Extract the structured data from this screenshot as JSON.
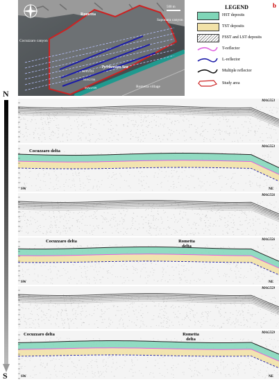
{
  "map": {
    "places": [
      "Rometta",
      "Saponara canyon",
      "Cocuzzaro canyon",
      "Tyrrhenian Sea",
      "Rometta village"
    ],
    "lines": [
      "MAG553",
      "MAG556",
      "MAG559"
    ],
    "scale": "500 m"
  },
  "legend": {
    "title": "LEGEND",
    "panel_letter": "b",
    "items": [
      {
        "label": "HST deposits",
        "color": "#7fd6b8"
      },
      {
        "label": "TST deposits",
        "color": "#f2e2a8"
      },
      {
        "label": "FSST and LST deposits",
        "color": "#ffffff"
      },
      {
        "label": "T-reflector",
        "color": "#e060e0"
      },
      {
        "label": "L-reflector",
        "color": "#1a1aa8"
      },
      {
        "label": "Multiple reflector",
        "color": "#111111"
      },
      {
        "label": "Study area",
        "color": "#cc2222"
      }
    ]
  },
  "compass": {
    "north": "N",
    "south": "S"
  },
  "panels": [
    {
      "id": "MAG553",
      "interpreted": false
    },
    {
      "id": "MAG553",
      "interpreted": true,
      "labels": [
        "Cocuzzaro delta"
      ],
      "sw": "SW",
      "ne": "NE"
    },
    {
      "id": "MAG556",
      "interpreted": false
    },
    {
      "id": "MAG556",
      "interpreted": true,
      "labels": [
        "Cocuzzaro delta",
        "Rometta delta"
      ],
      "sw": "SW",
      "ne": "NE"
    },
    {
      "id": "MAG559",
      "interpreted": false
    },
    {
      "id": "MAG559",
      "interpreted": true,
      "labels": [
        "Cocuzzaro delta",
        "Rometta delta"
      ],
      "sw": "SW",
      "ne": "NE"
    }
  ],
  "colors": {
    "hst": "#7fd6b8",
    "tst": "#f2e2a8",
    "t_reflector": "#e060e0",
    "l_reflector": "#1a1aa8",
    "study_area": "#cc2222"
  }
}
